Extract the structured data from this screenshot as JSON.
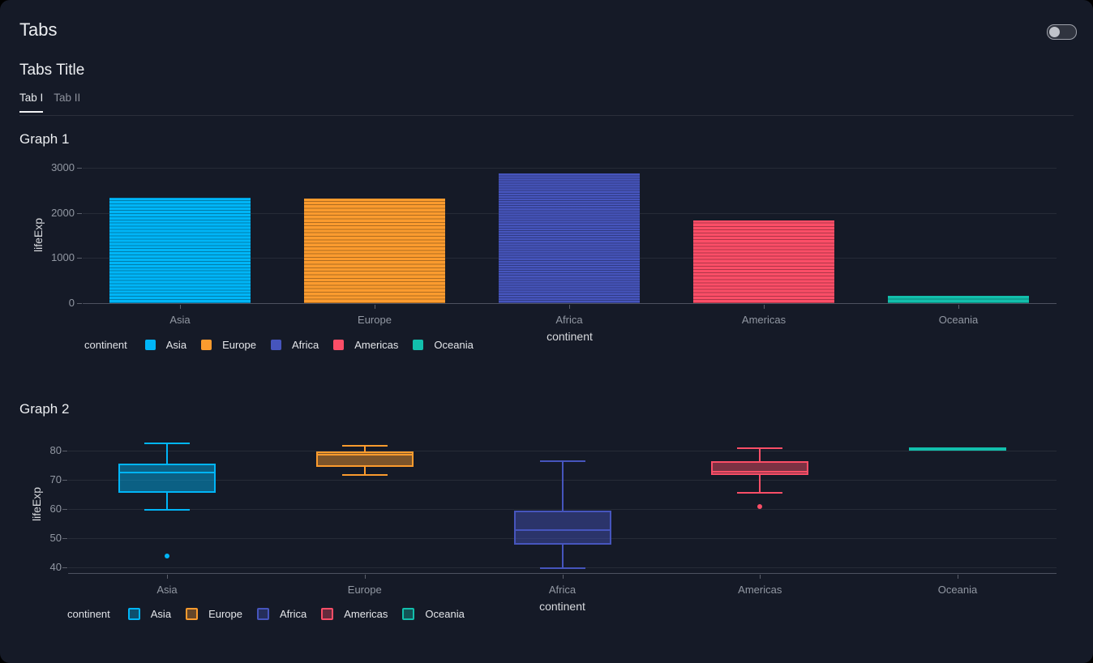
{
  "page": {
    "title": "Tabs"
  },
  "toggle": {
    "state": "off"
  },
  "card": {
    "title": "Tabs Title",
    "tabs": [
      {
        "label": "Tab I",
        "active": true
      },
      {
        "label": "Tab II",
        "active": false
      }
    ]
  },
  "colors": {
    "background": "#151a27",
    "grid": "#262b37",
    "axis_line": "#4d5160",
    "tick_text": "#9298a3",
    "tick_mark": "#5c606c",
    "axis_title_text": "#d8dade",
    "legend_text": "#e4e6ea",
    "palette": [
      "#00b5f7",
      "#fb9b2e",
      "#4655bd",
      "#fb4e67",
      "#12bfac"
    ]
  },
  "chart_data": [
    {
      "type": "bar",
      "title": "Graph 1",
      "xlabel": "continent",
      "ylabel": "lifeExp",
      "categories": [
        "Asia",
        "Europe",
        "Africa",
        "Americas",
        "Oceania"
      ],
      "values": [
        2330,
        2325,
        2870,
        1840,
        160
      ],
      "segment_counts": [
        33,
        30,
        52,
        25,
        2
      ],
      "colors": [
        "#00b5f7",
        "#fb9b2e",
        "#4655bd",
        "#fb4e67",
        "#12bfac"
      ],
      "yticks": [
        0,
        1000,
        2000,
        3000
      ],
      "ylim": [
        0,
        3170
      ],
      "grid": true,
      "bar_style": "stacked country segments",
      "legend": {
        "title": "continent",
        "entries": [
          "Asia",
          "Europe",
          "Africa",
          "Americas",
          "Oceania"
        ],
        "position": "bottom-left"
      }
    },
    {
      "type": "box",
      "title": "Graph 2",
      "xlabel": "continent",
      "ylabel": "lifeExp",
      "categories": [
        "Asia",
        "Europe",
        "Africa",
        "Americas",
        "Oceania"
      ],
      "stats": [
        {
          "category": "Asia",
          "upper_whisker": 82.6,
          "q3": 75.6,
          "median": 72.4,
          "q1": 65.5,
          "lower_whisker": 59.6,
          "outliers": [
            43.8
          ]
        },
        {
          "category": "Europe",
          "upper_whisker": 81.8,
          "q3": 79.8,
          "median": 78.6,
          "q1": 74.5,
          "lower_whisker": 71.8,
          "outliers": []
        },
        {
          "category": "Africa",
          "upper_whisker": 76.4,
          "q3": 59.4,
          "median": 52.9,
          "q1": 47.8,
          "lower_whisker": 39.6,
          "outliers": []
        },
        {
          "category": "Americas",
          "upper_whisker": 80.7,
          "q3": 76.4,
          "median": 72.9,
          "q1": 71.8,
          "lower_whisker": 65.6,
          "outliers": [
            60.9
          ]
        },
        {
          "category": "Oceania",
          "upper_whisker": 81.2,
          "q3": 81.2,
          "median": 80.7,
          "q1": 80.2,
          "lower_whisker": 80.2,
          "outliers": []
        }
      ],
      "colors": [
        "#00b5f7",
        "#fb9b2e",
        "#4655bd",
        "#fb4e67",
        "#12bfac"
      ],
      "yticks": [
        40,
        50,
        60,
        70,
        80
      ],
      "ylim": [
        37,
        85
      ],
      "grid": true,
      "legend": {
        "title": "continent",
        "entries": [
          "Asia",
          "Europe",
          "Africa",
          "Americas",
          "Oceania"
        ],
        "position": "bottom-left"
      }
    }
  ]
}
